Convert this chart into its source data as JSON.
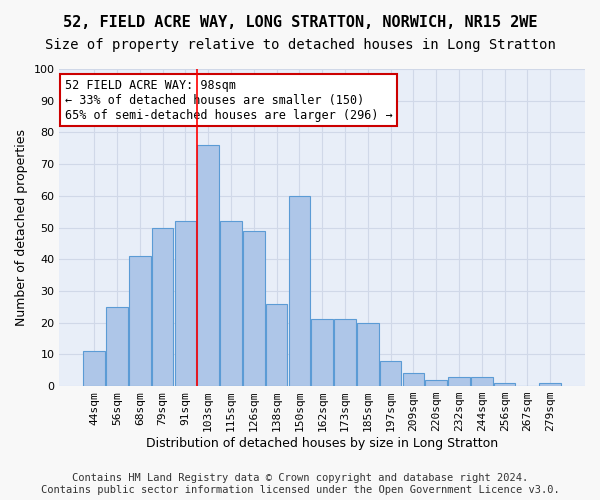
{
  "title1": "52, FIELD ACRE WAY, LONG STRATTON, NORWICH, NR15 2WE",
  "title2": "Size of property relative to detached houses in Long Stratton",
  "xlabel": "Distribution of detached houses by size in Long Stratton",
  "ylabel": "Number of detached properties",
  "categories": [
    "44sqm",
    "56sqm",
    "68sqm",
    "79sqm",
    "91sqm",
    "103sqm",
    "115sqm",
    "126sqm",
    "138sqm",
    "150sqm",
    "162sqm",
    "173sqm",
    "185sqm",
    "197sqm",
    "209sqm",
    "220sqm",
    "232sqm",
    "244sqm",
    "256sqm",
    "267sqm",
    "279sqm"
  ],
  "values": [
    11,
    25,
    41,
    50,
    52,
    76,
    52,
    49,
    26,
    60,
    21,
    21,
    20,
    8,
    4,
    2,
    3,
    3,
    1,
    0,
    1
  ],
  "bar_color": "#aec6e8",
  "bar_edge_color": "#5b9bd5",
  "red_line_x": 4.5,
  "annotation_line1": "52 FIELD ACRE WAY: 98sqm",
  "annotation_line2": "← 33% of detached houses are smaller (150)",
  "annotation_line3": "65% of semi-detached houses are larger (296) →",
  "annotation_box_color": "#ffffff",
  "annotation_box_edge_color": "#cc0000",
  "footer_line1": "Contains HM Land Registry data © Crown copyright and database right 2024.",
  "footer_line2": "Contains public sector information licensed under the Open Government Licence v3.0.",
  "ylim": [
    0,
    100
  ],
  "yticks": [
    0,
    10,
    20,
    30,
    40,
    50,
    60,
    70,
    80,
    90,
    100
  ],
  "grid_color": "#d0d8e8",
  "background_color": "#e8eef8",
  "title1_fontsize": 11,
  "title2_fontsize": 10,
  "xlabel_fontsize": 9,
  "ylabel_fontsize": 9,
  "tick_fontsize": 8,
  "annotation_fontsize": 8.5,
  "footer_fontsize": 7.5
}
